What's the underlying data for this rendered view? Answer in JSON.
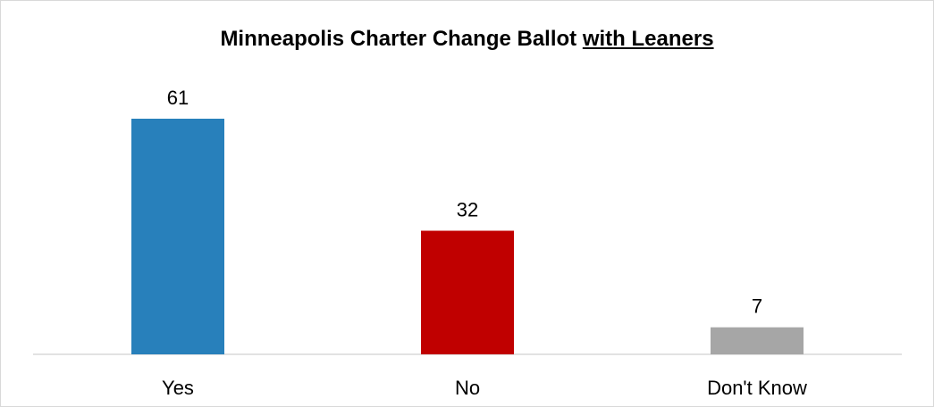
{
  "chart_data": {
    "type": "bar",
    "title": "Minneapolis Charter Change Ballot",
    "title_emphasis": "with Leaners",
    "categories": [
      "Yes",
      "No",
      "Don't Know"
    ],
    "values": [
      61,
      32,
      7
    ],
    "colors": [
      "#2880BB",
      "#C00000",
      "#A6A6A6"
    ],
    "ylim": [
      0,
      70
    ],
    "grid": false,
    "legend": "none"
  }
}
